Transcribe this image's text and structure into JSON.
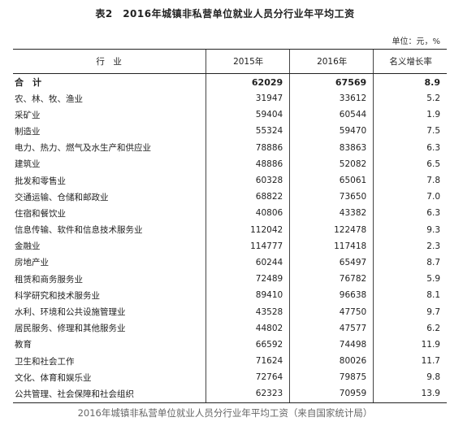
{
  "title": "表2　2016年城镇非私营单位就业人员分行业年平均工资",
  "unit": "单位：元，%",
  "headers": {
    "industry": "行　业",
    "y2015": "2015年",
    "y2016": "2016年",
    "growth": "名义增长率"
  },
  "rows": [
    {
      "industry": "合　计",
      "y2015": "62029",
      "y2016": "67569",
      "growth": "8.9"
    },
    {
      "industry": "农、林、牧、渔业",
      "y2015": "31947",
      "y2016": "33612",
      "growth": "5.2"
    },
    {
      "industry": "采矿业",
      "y2015": "59404",
      "y2016": "60544",
      "growth": "1.9"
    },
    {
      "industry": "制造业",
      "y2015": "55324",
      "y2016": "59470",
      "growth": "7.5"
    },
    {
      "industry": "电力、热力、燃气及水生产和供应业",
      "y2015": "78886",
      "y2016": "83863",
      "growth": "6.3"
    },
    {
      "industry": "建筑业",
      "y2015": "48886",
      "y2016": "52082",
      "growth": "6.5"
    },
    {
      "industry": "批发和零售业",
      "y2015": "60328",
      "y2016": "65061",
      "growth": "7.8"
    },
    {
      "industry": "交通运输、仓储和邮政业",
      "y2015": "68822",
      "y2016": "73650",
      "growth": "7.0"
    },
    {
      "industry": "住宿和餐饮业",
      "y2015": "40806",
      "y2016": "43382",
      "growth": "6.3"
    },
    {
      "industry": "信息传输、软件和信息技术服务业",
      "y2015": "112042",
      "y2016": "122478",
      "growth": "9.3"
    },
    {
      "industry": "金融业",
      "y2015": "114777",
      "y2016": "117418",
      "growth": "2.3"
    },
    {
      "industry": "房地产业",
      "y2015": "60244",
      "y2016": "65497",
      "growth": "8.7"
    },
    {
      "industry": "租赁和商务服务业",
      "y2015": "72489",
      "y2016": "76782",
      "growth": "5.9"
    },
    {
      "industry": "科学研究和技术服务业",
      "y2015": "89410",
      "y2016": "96638",
      "growth": "8.1"
    },
    {
      "industry": "水利、环境和公共设施管理业",
      "y2015": "43528",
      "y2016": "47750",
      "growth": "9.7"
    },
    {
      "industry": "居民服务、修理和其他服务业",
      "y2015": "44802",
      "y2016": "47577",
      "growth": "6.2"
    },
    {
      "industry": "教育",
      "y2015": "66592",
      "y2016": "74498",
      "growth": "11.9"
    },
    {
      "industry": "卫生和社会工作",
      "y2015": "71624",
      "y2016": "80026",
      "growth": "11.7"
    },
    {
      "industry": "文化、体育和娱乐业",
      "y2015": "72764",
      "y2016": "79875",
      "growth": "9.8"
    },
    {
      "industry": "公共管理、社会保障和社会组织",
      "y2015": "62323",
      "y2016": "70959",
      "growth": "13.9"
    }
  ],
  "caption": "2016年城镇非私营单位就业人员分行业年平均工资（来自国家统计局）"
}
